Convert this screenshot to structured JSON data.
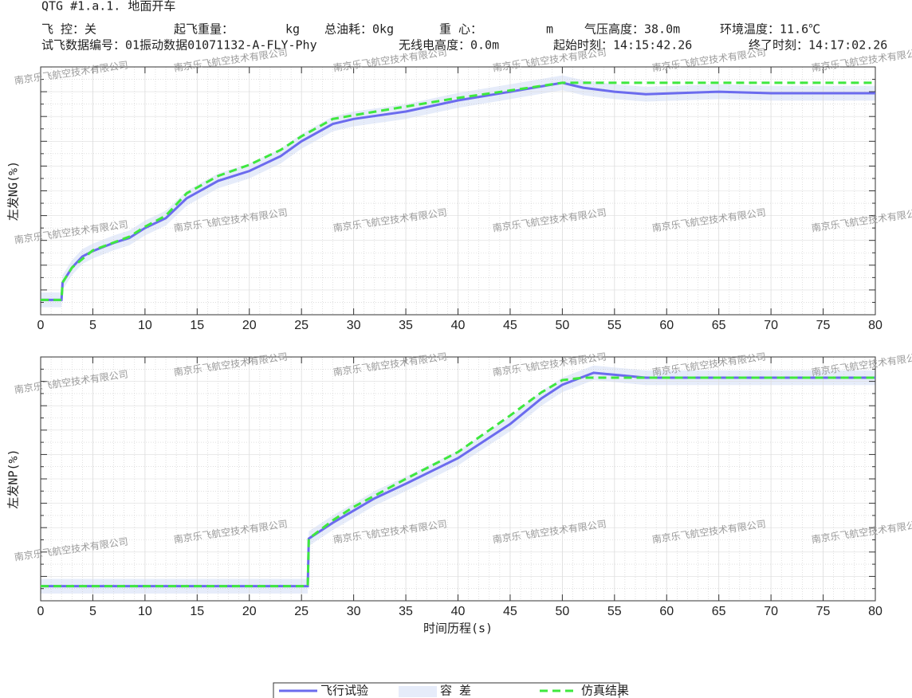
{
  "header": {
    "line1": "QTG  #1.a.1.  地面开车",
    "fields": [
      "飞    控：关",
      "起飞重量：",
      "kg",
      "总油耗：0kg",
      "重    心：",
      "m",
      "气压高度：38.0m",
      "环境温度：11.6℃"
    ],
    "fields2": [
      "试飞数据编号：01振动数据01071132-A-FLY-Phy",
      "无线电高度：0.0m",
      "起始时刻：14:15:42.26",
      "终了时刻：14:17:02.26"
    ]
  },
  "watermark": "南京乐飞航空技术有限公司",
  "chart_data": [
    {
      "type": "line",
      "ylabel": "左发NG(%)",
      "xlim": [
        0,
        80
      ],
      "ylim": [
        0,
        100
      ],
      "xticks": [
        0,
        5,
        10,
        15,
        20,
        25,
        30,
        35,
        40,
        45,
        50,
        55,
        60,
        65,
        70,
        75,
        80
      ],
      "grid": true,
      "band": {
        "name": "容  差",
        "color": "#e6ecfa",
        "x": [
          0,
          2,
          2.1,
          3,
          4,
          5,
          7,
          8.5,
          10,
          12,
          14,
          17,
          20,
          23,
          25,
          28,
          30,
          35,
          40,
          45,
          50,
          52,
          55,
          58,
          65,
          70,
          80
        ],
        "upper": [
          9,
          9,
          16,
          22,
          26.5,
          28.7,
          32,
          34,
          38,
          42,
          50,
          57,
          61,
          67,
          73,
          80,
          82,
          85,
          89.5,
          93,
          96.6,
          94.6,
          93,
          92,
          93,
          92.4,
          92.4
        ],
        "lower": [
          3,
          3,
          10,
          16,
          20.5,
          22.7,
          26,
          28,
          32,
          36,
          44,
          51,
          55,
          61,
          67,
          74,
          76,
          79,
          83.5,
          87,
          90.6,
          88.6,
          87,
          86,
          87,
          86.4,
          86.4
        ]
      },
      "series": [
        {
          "name": "飞行试验",
          "color": "#6b6bee",
          "dash": false,
          "x": [
            0,
            2,
            2.1,
            3,
            4,
            5,
            7,
            8.5,
            10,
            12,
            14,
            17,
            20,
            23,
            25,
            28,
            30,
            35,
            40,
            45,
            50,
            52,
            55,
            58,
            65,
            70,
            80
          ],
          "values": [
            6,
            6,
            13,
            19,
            23.5,
            25.7,
            29,
            31,
            35,
            39,
            47,
            54,
            58,
            64,
            70,
            77,
            79,
            82,
            86.5,
            90,
            93.6,
            91.6,
            90,
            89,
            90,
            89.4,
            89.4
          ]
        },
        {
          "name": "仿真结果",
          "color": "#3ee83e",
          "dash": true,
          "x": [
            0,
            2,
            2.1,
            3,
            5,
            8.5,
            10,
            12,
            14,
            17,
            20,
            23,
            25,
            28,
            30,
            35,
            40,
            45,
            50,
            80
          ],
          "values": [
            6,
            6,
            13,
            19,
            26,
            31.5,
            35.5,
            40,
            49,
            56,
            60.5,
            66.5,
            72,
            79,
            80.5,
            84,
            87.5,
            90.5,
            93.6,
            93.6
          ]
        }
      ]
    },
    {
      "type": "line",
      "ylabel": "左发NP(%)",
      "xlabel": "时间历程(s)",
      "xlim": [
        0,
        80
      ],
      "ylim": [
        0,
        100
      ],
      "xticks": [
        0,
        5,
        10,
        15,
        20,
        25,
        30,
        35,
        40,
        45,
        50,
        55,
        60,
        65,
        70,
        75,
        80
      ],
      "grid": true,
      "band": {
        "name": "容  差",
        "color": "#e6ecfa",
        "x": [
          0,
          25.6,
          25.7,
          28,
          30,
          32,
          35,
          40,
          45,
          48,
          50,
          53,
          58,
          80
        ],
        "upper": [
          9,
          9,
          28.5,
          35,
          40,
          45,
          51,
          61.5,
          75.5,
          86,
          91.6,
          96.5,
          94.5,
          94.5
        ],
        "lower": [
          3,
          3,
          22.5,
          29,
          34,
          39,
          45,
          55.5,
          69.5,
          80,
          85.6,
          90.5,
          88.5,
          88.5
        ]
      },
      "series": [
        {
          "name": "飞行试验",
          "color": "#6b6bee",
          "dash": false,
          "x": [
            0,
            25.6,
            25.7,
            28,
            30,
            32,
            35,
            40,
            45,
            48,
            50,
            53,
            58,
            80
          ],
          "values": [
            6,
            6,
            25.5,
            32,
            37,
            42,
            48,
            58.5,
            72.5,
            83,
            88.6,
            93.5,
            91.5,
            91.5
          ]
        },
        {
          "name": "仿真结果",
          "color": "#3ee83e",
          "dash": true,
          "x": [
            0,
            25.6,
            25.7,
            28,
            30,
            35,
            40,
            45,
            48,
            50,
            52,
            80
          ],
          "values": [
            6,
            6,
            25.5,
            33,
            38.5,
            50,
            61,
            76,
            85.5,
            90.5,
            91.5,
            91.5
          ]
        }
      ]
    }
  ]
}
